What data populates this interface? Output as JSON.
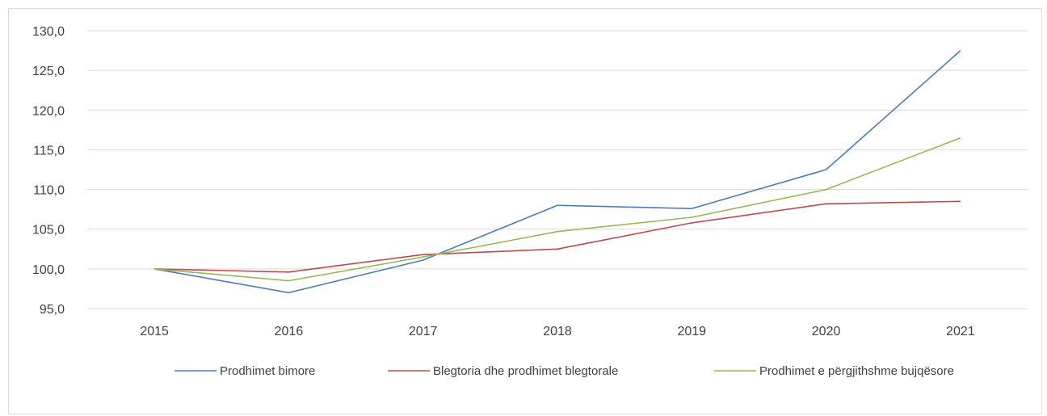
{
  "chart_data": {
    "type": "line",
    "title": "",
    "xlabel": "",
    "ylabel": "",
    "x": [
      "2015",
      "2016",
      "2017",
      "2018",
      "2019",
      "2020",
      "2021"
    ],
    "ylim": [
      95.0,
      130.0
    ],
    "yticks": [
      "95,0",
      "100,0",
      "105,0",
      "110,0",
      "115,0",
      "120,0",
      "125,0",
      "130,0"
    ],
    "grid": "horizontal",
    "legend_position": "bottom",
    "series": [
      {
        "name": "Prodhimet bimore",
        "color": "#4a7ebb",
        "values": [
          100.0,
          97.0,
          101.1,
          108.0,
          107.6,
          112.5,
          127.5
        ]
      },
      {
        "name": "Blegtoria dhe prodhimet blegtorale",
        "color": "#be4b48",
        "values": [
          100.0,
          99.6,
          101.8,
          102.5,
          105.8,
          108.2,
          108.5
        ]
      },
      {
        "name": "Prodhimet e përgjithshme bujqësore",
        "color": "#98b954",
        "values": [
          100.0,
          98.5,
          101.5,
          104.7,
          106.5,
          110.0,
          116.5
        ]
      }
    ]
  }
}
